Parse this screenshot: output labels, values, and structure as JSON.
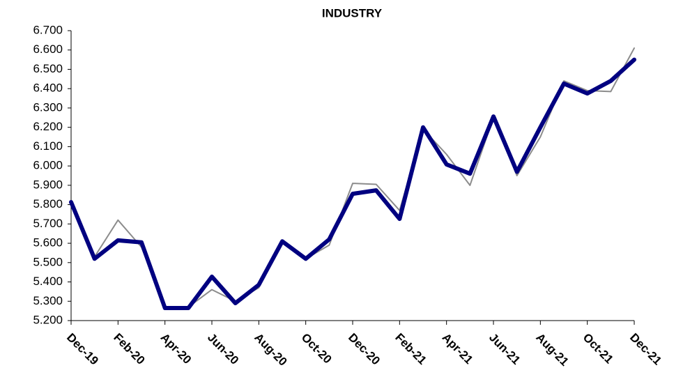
{
  "chart_data": {
    "type": "line",
    "title": "INDUSTRY",
    "categories": [
      "Dec-19",
      null,
      "Feb-20",
      null,
      "Apr-20",
      null,
      "Jun-20",
      null,
      "Aug-20",
      null,
      "Oct-20",
      null,
      "Dec-20",
      null,
      "Feb-21",
      null,
      "Apr-21",
      null,
      "Jun-21",
      null,
      "Aug-21",
      null,
      "Oct-21",
      null,
      "Dec-21"
    ],
    "series": [
      {
        "color": "#8c8c8c",
        "values": [
          5.8,
          5.53,
          5.72,
          5.58,
          5.27,
          5.27,
          5.36,
          5.3,
          5.37,
          5.61,
          5.52,
          5.59,
          5.91,
          5.905,
          5.77,
          6.19,
          6.06,
          5.9,
          6.25,
          5.95,
          6.15,
          6.44,
          6.39,
          6.385,
          6.61
        ]
      },
      {
        "color": "#000080",
        "values": [
          5.813,
          5.52,
          5.615,
          5.605,
          5.265,
          5.265,
          5.427,
          5.29,
          5.385,
          5.61,
          5.52,
          5.62,
          5.856,
          5.874,
          5.726,
          6.2,
          6.008,
          5.96,
          6.256,
          5.97,
          6.2,
          6.426,
          6.375,
          6.44,
          6.55
        ]
      }
    ],
    "ylim": [
      5.2,
      6.7
    ],
    "yticks": [
      {
        "value": 5.2,
        "label": "5.200"
      },
      {
        "value": 5.3,
        "label": "5.300"
      },
      {
        "value": 5.4,
        "label": "5.400"
      },
      {
        "value": 5.5,
        "label": "5.500"
      },
      {
        "value": 5.6,
        "label": "5.600"
      },
      {
        "value": 5.7,
        "label": "5.700"
      },
      {
        "value": 5.8,
        "label": "5.800"
      },
      {
        "value": 5.9,
        "label": "5.900"
      },
      {
        "value": 6.0,
        "label": "6.000"
      },
      {
        "value": 6.1,
        "label": "6.100"
      },
      {
        "value": 6.2,
        "label": "6.200"
      },
      {
        "value": 6.3,
        "label": "6.300"
      },
      {
        "value": 6.4,
        "label": "6.400"
      },
      {
        "value": 6.5,
        "label": "6.500"
      },
      {
        "value": 6.6,
        "label": "6.600"
      },
      {
        "value": 6.7,
        "label": "6.700"
      }
    ],
    "grid": false
  }
}
